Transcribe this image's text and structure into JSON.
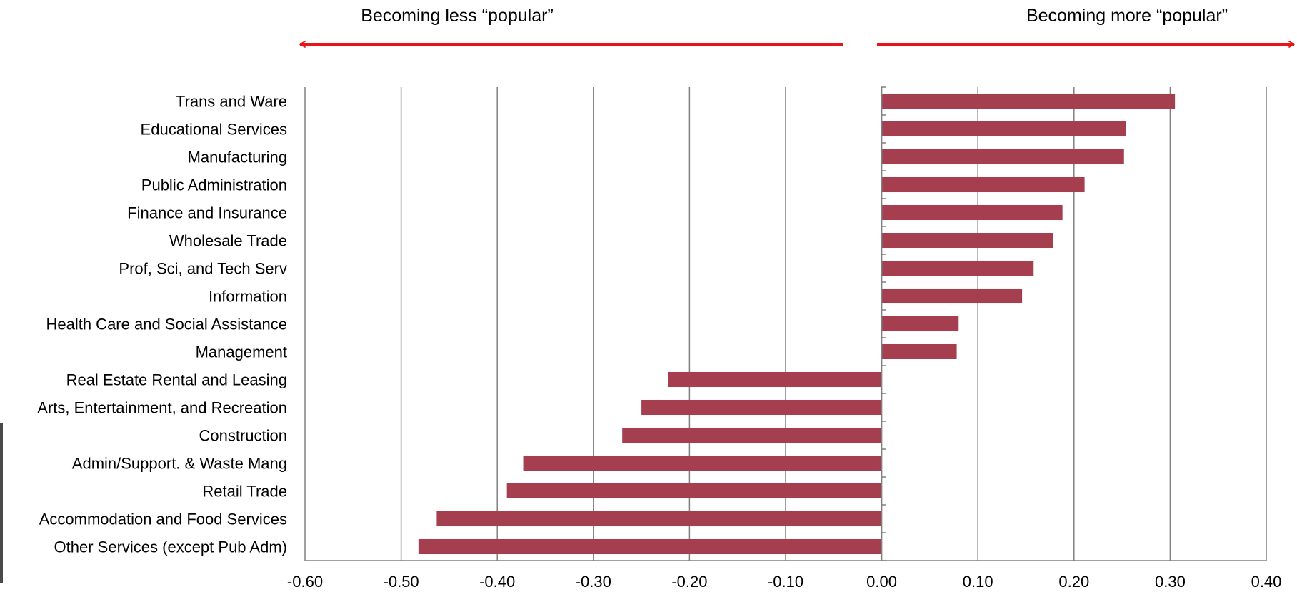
{
  "annotations": {
    "left": "Becoming less “popular”",
    "right": "Becoming more “popular”"
  },
  "colors": {
    "bar": "#a53f4f",
    "arrow": "#e8141a",
    "grid": "#808080",
    "axis": "#808080"
  },
  "chart_data": {
    "type": "bar",
    "orientation": "horizontal",
    "title": "",
    "xlabel": "",
    "ylabel": "",
    "xlim": [
      -0.6,
      0.4
    ],
    "xticks": [
      -0.6,
      -0.5,
      -0.4,
      -0.3,
      -0.2,
      -0.1,
      0.0,
      0.1,
      0.2,
      0.3,
      0.4
    ],
    "xtick_labels": [
      "-0.60",
      "-0.50",
      "-0.40",
      "-0.30",
      "-0.20",
      "-0.10",
      "0.00",
      "0.10",
      "0.20",
      "0.30",
      "0.40"
    ],
    "grid": "vertical",
    "legend": "none",
    "categories": [
      "Trans and Ware",
      "Educational Services",
      "Manufacturing",
      "Public Administration",
      "Finance and Insurance",
      "Wholesale Trade",
      "Prof, Sci, and Tech Serv",
      "Information",
      "Health Care and Social Assistance",
      "Management",
      "Real Estate Rental and Leasing",
      "Arts, Entertainment, and Recreation",
      "Construction",
      "Admin/Support. & Waste Mang",
      "Retail Trade",
      "Accommodation and Food Services",
      "Other Services (except Pub Adm)"
    ],
    "values": [
      0.305,
      0.254,
      0.252,
      0.211,
      0.188,
      0.178,
      0.158,
      0.146,
      0.08,
      0.078,
      -0.222,
      -0.25,
      -0.27,
      -0.373,
      -0.39,
      -0.463,
      -0.482
    ]
  }
}
